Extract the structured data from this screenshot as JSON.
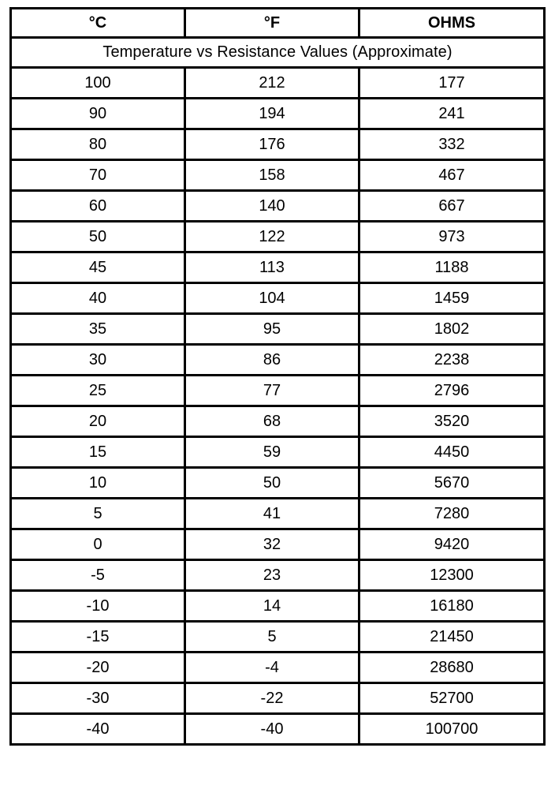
{
  "headers": [
    "°C",
    "°F",
    "OHMS"
  ],
  "title": "Temperature vs Resistance Values (Approximate)",
  "rows": [
    [
      "100",
      "212",
      "177"
    ],
    [
      "90",
      "194",
      "241"
    ],
    [
      "80",
      "176",
      "332"
    ],
    [
      "70",
      "158",
      "467"
    ],
    [
      "60",
      "140",
      "667"
    ],
    [
      "50",
      "122",
      "973"
    ],
    [
      "45",
      "113",
      "1188"
    ],
    [
      "40",
      "104",
      "1459"
    ],
    [
      "35",
      "95",
      "1802"
    ],
    [
      "30",
      "86",
      "2238"
    ],
    [
      "25",
      "77",
      "2796"
    ],
    [
      "20",
      "68",
      "3520"
    ],
    [
      "15",
      "59",
      "4450"
    ],
    [
      "10",
      "50",
      "5670"
    ],
    [
      "5",
      "41",
      "7280"
    ],
    [
      "0",
      "32",
      "9420"
    ],
    [
      "-5",
      "23",
      "12300"
    ],
    [
      "-10",
      "14",
      "16180"
    ],
    [
      "-15",
      "5",
      "21450"
    ],
    [
      "-20",
      "-4",
      "28680"
    ],
    [
      "-30",
      "-22",
      "52700"
    ],
    [
      "-40",
      "-40",
      "100700"
    ]
  ]
}
